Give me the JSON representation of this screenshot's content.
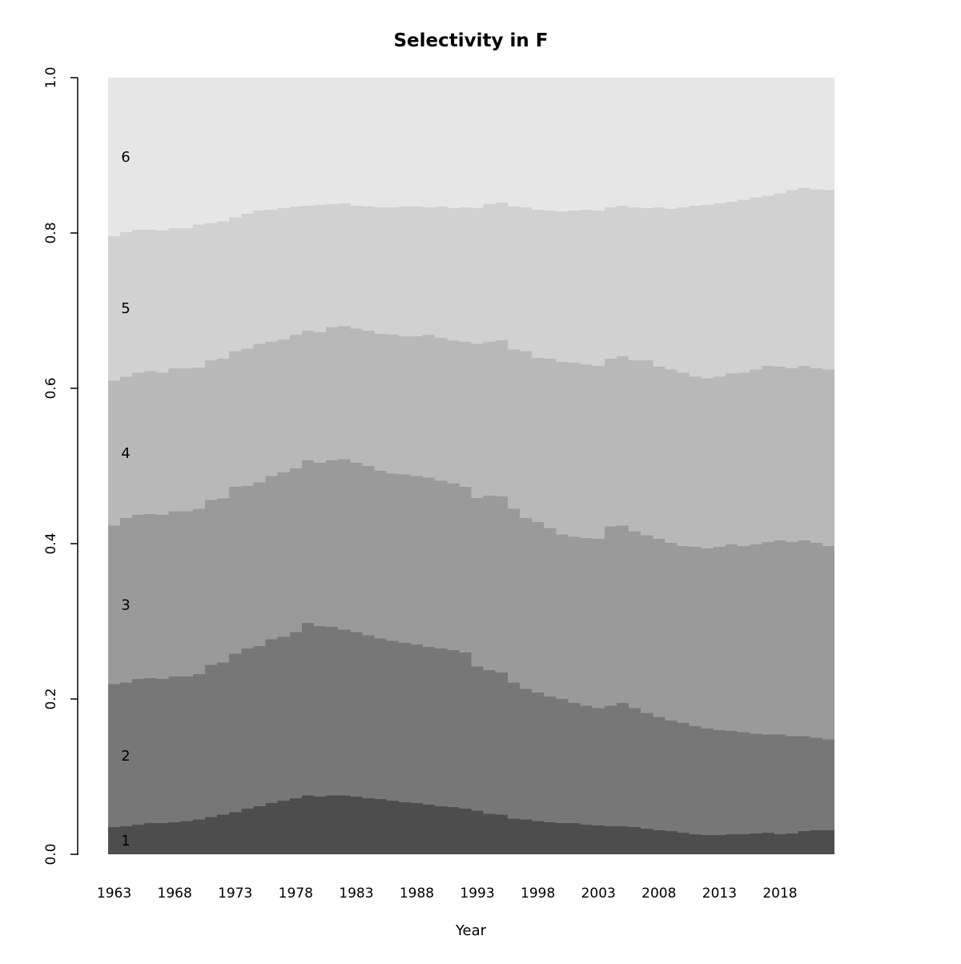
{
  "chart_data": {
    "type": "area",
    "variant": "stacked-step-proportions",
    "title": "Selectivity in F",
    "xlabel": "Year",
    "ylabel": "",
    "ylim": [
      0.0,
      1.0
    ],
    "grid": false,
    "legend": "none (bands labeled in-plot with age numbers)",
    "y_tick_labels": [
      "0.0",
      "0.2",
      "0.4",
      "0.6",
      "0.8",
      "1.0"
    ],
    "y_tick_values": [
      0.0,
      0.2,
      0.4,
      0.6,
      0.8,
      1.0
    ],
    "x_tick_labels": [
      "1963",
      "1968",
      "1973",
      "1978",
      "1983",
      "1988",
      "1993",
      "1998",
      "2003",
      "2008",
      "2013",
      "2018"
    ],
    "x_tick_values": [
      1963,
      1968,
      1973,
      1978,
      1983,
      1988,
      1993,
      1998,
      2003,
      2008,
      2013,
      2018
    ],
    "years": [
      1963,
      1964,
      1965,
      1966,
      1967,
      1968,
      1969,
      1970,
      1971,
      1972,
      1973,
      1974,
      1975,
      1976,
      1977,
      1978,
      1979,
      1980,
      1981,
      1982,
      1983,
      1984,
      1985,
      1986,
      1987,
      1988,
      1989,
      1990,
      1991,
      1992,
      1993,
      1994,
      1995,
      1996,
      1997,
      1998,
      1999,
      2000,
      2001,
      2002,
      2003,
      2004,
      2005,
      2006,
      2007,
      2008,
      2009,
      2010,
      2011,
      2012,
      2013,
      2014,
      2015,
      2016,
      2017,
      2018,
      2019,
      2020,
      2021,
      2022
    ],
    "ages": [
      "1",
      "2",
      "3",
      "4",
      "5",
      "6"
    ],
    "band_colors": [
      "#4D4D4D",
      "#777777",
      "#9A9A9A",
      "#B8B8B8",
      "#D1D1D1",
      "#E6E6E6"
    ],
    "series": [
      {
        "age": "1",
        "cum_top": [
          0.035,
          0.036,
          0.038,
          0.04,
          0.04,
          0.041,
          0.043,
          0.045,
          0.048,
          0.051,
          0.054,
          0.059,
          0.062,
          0.066,
          0.069,
          0.072,
          0.076,
          0.074,
          0.076,
          0.076,
          0.074,
          0.072,
          0.071,
          0.069,
          0.067,
          0.066,
          0.064,
          0.062,
          0.061,
          0.059,
          0.056,
          0.052,
          0.051,
          0.046,
          0.045,
          0.043,
          0.041,
          0.04,
          0.04,
          0.038,
          0.037,
          0.036,
          0.036,
          0.035,
          0.033,
          0.031,
          0.03,
          0.028,
          0.026,
          0.025,
          0.025,
          0.026,
          0.026,
          0.027,
          0.028,
          0.026,
          0.027,
          0.03,
          0.031,
          0.031
        ]
      },
      {
        "age": "2",
        "cum_top": [
          0.219,
          0.221,
          0.226,
          0.227,
          0.226,
          0.229,
          0.229,
          0.232,
          0.244,
          0.247,
          0.258,
          0.265,
          0.268,
          0.277,
          0.28,
          0.286,
          0.298,
          0.294,
          0.293,
          0.289,
          0.286,
          0.282,
          0.278,
          0.275,
          0.272,
          0.27,
          0.267,
          0.265,
          0.263,
          0.26,
          0.242,
          0.237,
          0.234,
          0.221,
          0.213,
          0.208,
          0.203,
          0.2,
          0.195,
          0.191,
          0.188,
          0.191,
          0.195,
          0.188,
          0.182,
          0.177,
          0.172,
          0.169,
          0.165,
          0.162,
          0.16,
          0.159,
          0.157,
          0.155,
          0.154,
          0.154,
          0.152,
          0.152,
          0.15,
          0.148
        ]
      },
      {
        "age": "3",
        "cum_top": [
          0.423,
          0.433,
          0.437,
          0.438,
          0.437,
          0.442,
          0.442,
          0.445,
          0.456,
          0.458,
          0.473,
          0.474,
          0.479,
          0.487,
          0.492,
          0.497,
          0.507,
          0.504,
          0.507,
          0.509,
          0.504,
          0.5,
          0.494,
          0.49,
          0.489,
          0.487,
          0.485,
          0.481,
          0.478,
          0.473,
          0.459,
          0.462,
          0.461,
          0.445,
          0.433,
          0.428,
          0.42,
          0.412,
          0.409,
          0.407,
          0.406,
          0.422,
          0.423,
          0.416,
          0.411,
          0.406,
          0.401,
          0.397,
          0.396,
          0.394,
          0.396,
          0.399,
          0.397,
          0.399,
          0.402,
          0.404,
          0.402,
          0.404,
          0.401,
          0.397
        ]
      },
      {
        "age": "4",
        "cum_top": [
          0.61,
          0.615,
          0.62,
          0.622,
          0.62,
          0.626,
          0.626,
          0.627,
          0.636,
          0.638,
          0.648,
          0.651,
          0.657,
          0.66,
          0.663,
          0.669,
          0.674,
          0.672,
          0.679,
          0.68,
          0.677,
          0.674,
          0.67,
          0.669,
          0.667,
          0.667,
          0.669,
          0.665,
          0.662,
          0.66,
          0.657,
          0.66,
          0.662,
          0.65,
          0.648,
          0.639,
          0.638,
          0.634,
          0.633,
          0.631,
          0.629,
          0.638,
          0.641,
          0.636,
          0.636,
          0.628,
          0.624,
          0.62,
          0.615,
          0.613,
          0.615,
          0.619,
          0.62,
          0.624,
          0.629,
          0.628,
          0.626,
          0.629,
          0.626,
          0.624
        ]
      },
      {
        "age": "5",
        "cum_top": [
          0.796,
          0.801,
          0.804,
          0.804,
          0.803,
          0.806,
          0.806,
          0.811,
          0.813,
          0.815,
          0.82,
          0.825,
          0.829,
          0.83,
          0.832,
          0.834,
          0.835,
          0.836,
          0.837,
          0.838,
          0.835,
          0.834,
          0.833,
          0.833,
          0.834,
          0.834,
          0.833,
          0.834,
          0.832,
          0.833,
          0.832,
          0.837,
          0.839,
          0.834,
          0.833,
          0.83,
          0.829,
          0.828,
          0.829,
          0.83,
          0.829,
          0.833,
          0.835,
          0.833,
          0.832,
          0.833,
          0.831,
          0.833,
          0.835,
          0.836,
          0.838,
          0.84,
          0.843,
          0.846,
          0.848,
          0.851,
          0.855,
          0.858,
          0.856,
          0.855
        ]
      },
      {
        "age": "6",
        "cum_top": [
          1,
          1,
          1,
          1,
          1,
          1,
          1,
          1,
          1,
          1,
          1,
          1,
          1,
          1,
          1,
          1,
          1,
          1,
          1,
          1,
          1,
          1,
          1,
          1,
          1,
          1,
          1,
          1,
          1,
          1,
          1,
          1,
          1,
          1,
          1,
          1,
          1,
          1,
          1,
          1,
          1,
          1,
          1,
          1,
          1,
          1,
          1,
          1,
          1,
          1,
          1,
          1,
          1,
          1,
          1,
          1,
          1,
          1,
          1,
          1
        ]
      }
    ]
  }
}
